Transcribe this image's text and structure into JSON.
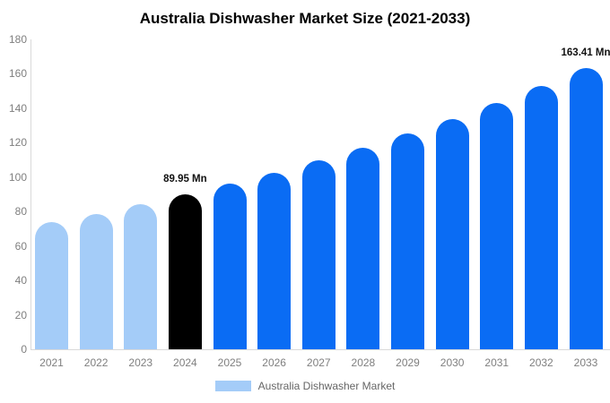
{
  "title": "Australia Dishwasher Market Size (2021-2033)",
  "legend": {
    "label": "Australia Dishwasher Market"
  },
  "chart_data": {
    "type": "bar",
    "title": "Australia Dishwasher Market Size (2021-2033)",
    "categories": [
      "2021",
      "2022",
      "2023",
      "2024",
      "2025",
      "2026",
      "2027",
      "2028",
      "2029",
      "2030",
      "2031",
      "2032",
      "2033"
    ],
    "values": [
      73.7,
      78.8,
      84.2,
      89.95,
      96.1,
      102.7,
      109.8,
      117.3,
      125.3,
      133.9,
      143.1,
      152.9,
      163.41
    ],
    "bar_colors": [
      "#A4CCF8",
      "#A4CCF8",
      "#A4CCF8",
      "#000000",
      "#0A6CF4",
      "#0A6CF4",
      "#0A6CF4",
      "#0A6CF4",
      "#0A6CF4",
      "#0A6CF4",
      "#0A6CF4",
      "#0A6CF4",
      "#0A6CF4"
    ],
    "ylim": [
      0,
      180
    ],
    "ytick_step": 20,
    "ytick_labels": [
      "0",
      "20",
      "40",
      "60",
      "80",
      "100",
      "120",
      "140",
      "160",
      "180"
    ],
    "grid": false,
    "xlabel": "",
    "ylabel": "",
    "legend": {
      "label": "Australia Dishwasher Market",
      "swatch_color": "#A4CCF8",
      "position": "bottom"
    },
    "annotations": [
      {
        "category": "2024",
        "text": "89.95 Mn"
      },
      {
        "category": "2033",
        "text": "163.41 Mn"
      }
    ],
    "colors": {
      "historical_bar": "#A4CCF8",
      "highlight_bar": "#000000",
      "forecast_bar": "#0A6CF4",
      "axis_line": "#D9D9D9",
      "tick_text": "#7F7F7F",
      "title_text": "#000000"
    }
  }
}
